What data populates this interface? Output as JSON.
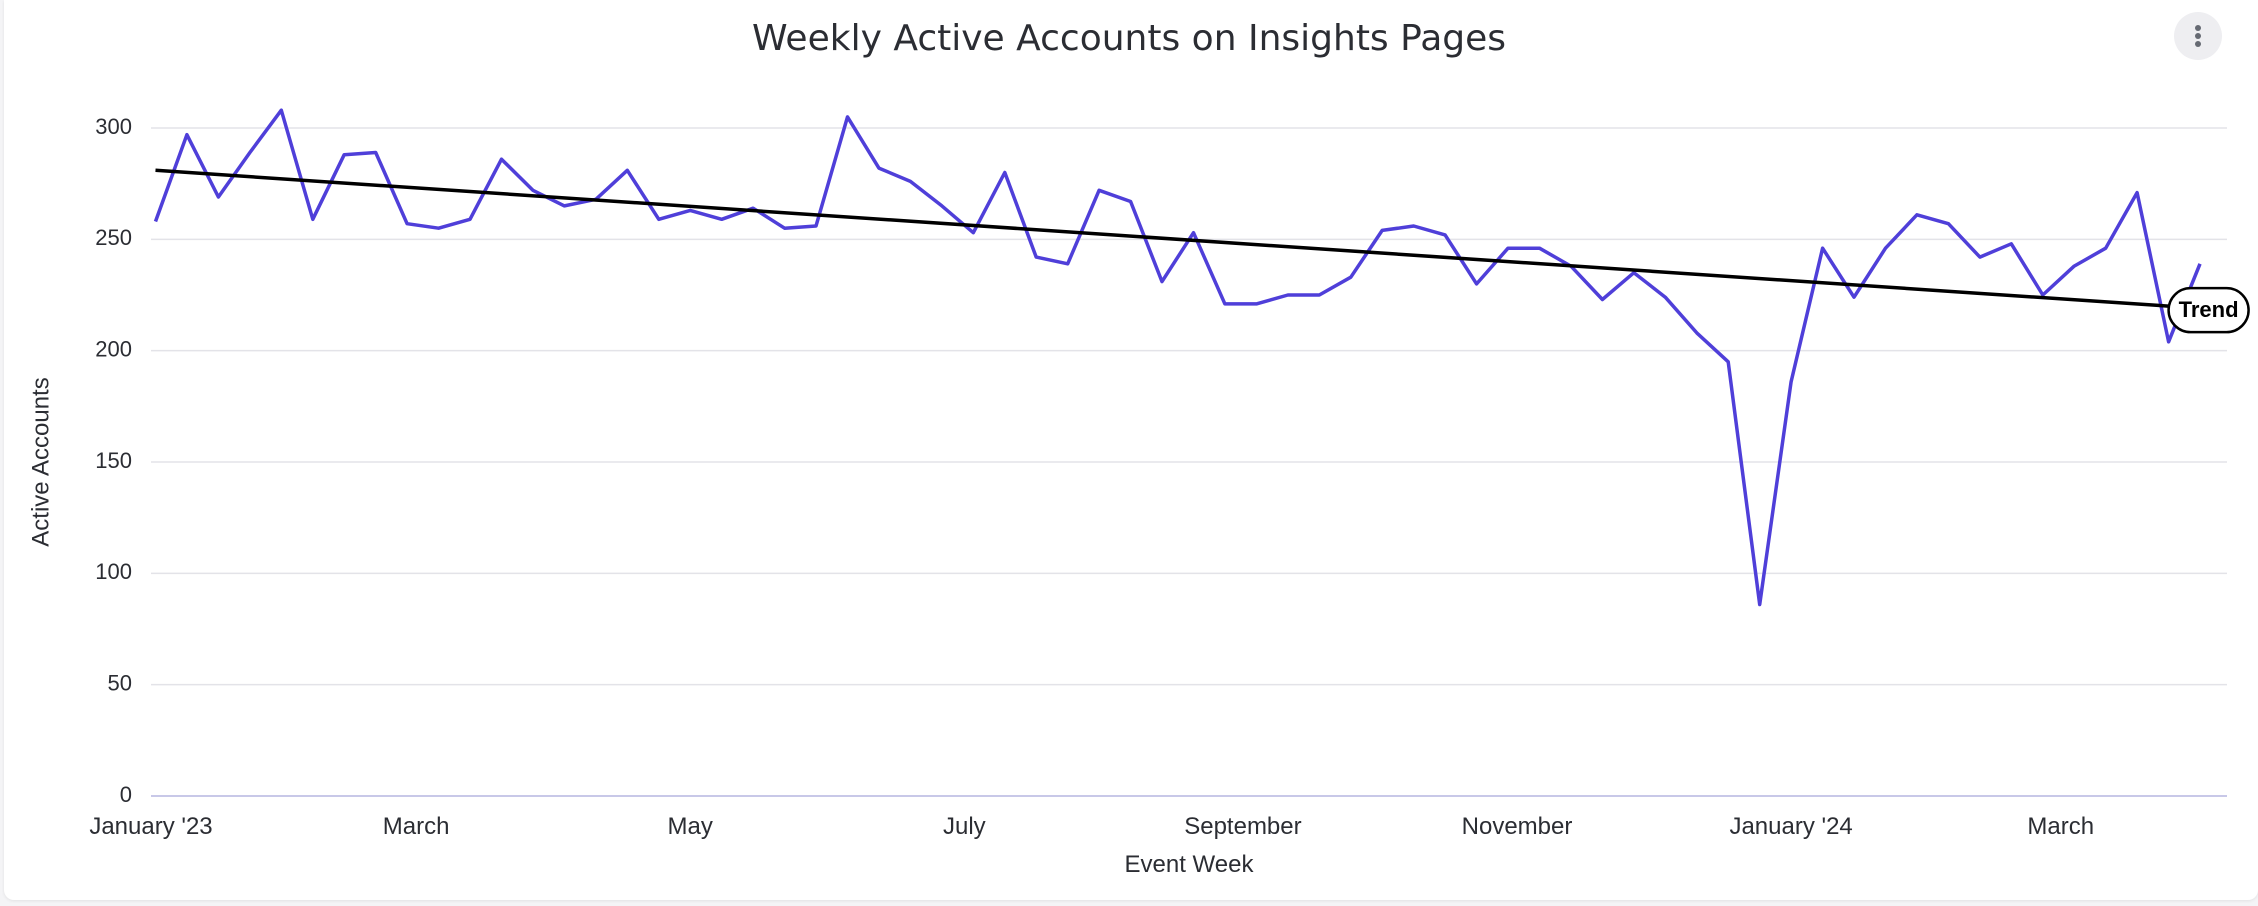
{
  "menu": {
    "icon": "more-vert-icon"
  },
  "colors": {
    "series": "#4f3fd9",
    "trend": "#000000",
    "grid": "#e3e3e8",
    "axis": "#c8c8e8"
  },
  "chart_data": {
    "type": "line",
    "title": "Weekly Active Accounts on Insights Pages",
    "xlabel": "Event Week",
    "ylabel": "Active Accounts",
    "ylim": [
      0,
      300
    ],
    "yticks": [
      0,
      50,
      100,
      150,
      200,
      250,
      300
    ],
    "grid": true,
    "x_start": "2023-01-01",
    "x_end": "2024-04-07",
    "xticks": [
      {
        "date": "2023-01-01",
        "label": "January '23"
      },
      {
        "date": "2023-03-01",
        "label": "March"
      },
      {
        "date": "2023-05-01",
        "label": "May"
      },
      {
        "date": "2023-07-01",
        "label": "July"
      },
      {
        "date": "2023-09-01",
        "label": "September"
      },
      {
        "date": "2023-11-01",
        "label": "November"
      },
      {
        "date": "2024-01-01",
        "label": "January '24"
      },
      {
        "date": "2024-03-01",
        "label": "March"
      }
    ],
    "series": [
      {
        "x": [
          "2023-01-02",
          "2023-01-09",
          "2023-01-16",
          "2023-01-23",
          "2023-01-30",
          "2023-02-06",
          "2023-02-13",
          "2023-02-20",
          "2023-02-27",
          "2023-03-06",
          "2023-03-13",
          "2023-03-20",
          "2023-03-27",
          "2023-04-03",
          "2023-04-10",
          "2023-04-17",
          "2023-04-24",
          "2023-05-01",
          "2023-05-08",
          "2023-05-15",
          "2023-05-22",
          "2023-05-29",
          "2023-06-05",
          "2023-06-12",
          "2023-06-19",
          "2023-06-26",
          "2023-07-03",
          "2023-07-10",
          "2023-07-17",
          "2023-07-24",
          "2023-07-31",
          "2023-08-07",
          "2023-08-14",
          "2023-08-21",
          "2023-08-28",
          "2023-09-04",
          "2023-09-11",
          "2023-09-18",
          "2023-09-25",
          "2023-10-02",
          "2023-10-09",
          "2023-10-16",
          "2023-10-23",
          "2023-10-30",
          "2023-11-06",
          "2023-11-13",
          "2023-11-20",
          "2023-11-27",
          "2023-12-04",
          "2023-12-11",
          "2023-12-18",
          "2023-12-25",
          "2024-01-01",
          "2024-01-08",
          "2024-01-15",
          "2024-01-22",
          "2024-01-29",
          "2024-02-05",
          "2024-02-12",
          "2024-02-19",
          "2024-02-26",
          "2024-03-04",
          "2024-03-11",
          "2024-03-18",
          "2024-03-25",
          "2024-04-01"
        ],
        "values": [
          258,
          297,
          269,
          289,
          308,
          259,
          288,
          289,
          257,
          255,
          259,
          286,
          272,
          265,
          268,
          281,
          259,
          263,
          259,
          264,
          255,
          256,
          305,
          282,
          276,
          265,
          253,
          280,
          242,
          239,
          272,
          267,
          231,
          253,
          221,
          221,
          225,
          225,
          233,
          254,
          256,
          252,
          230,
          246,
          246,
          238,
          223,
          235,
          224,
          208,
          195,
          86,
          186,
          246,
          224,
          246,
          261,
          257,
          242,
          248,
          225,
          238,
          246,
          271,
          204,
          239
        ]
      },
      {
        "name": "Trend",
        "type": "trend",
        "x": [
          "2023-01-02",
          "2024-03-25"
        ],
        "values": [
          281,
          220
        ]
      }
    ]
  }
}
